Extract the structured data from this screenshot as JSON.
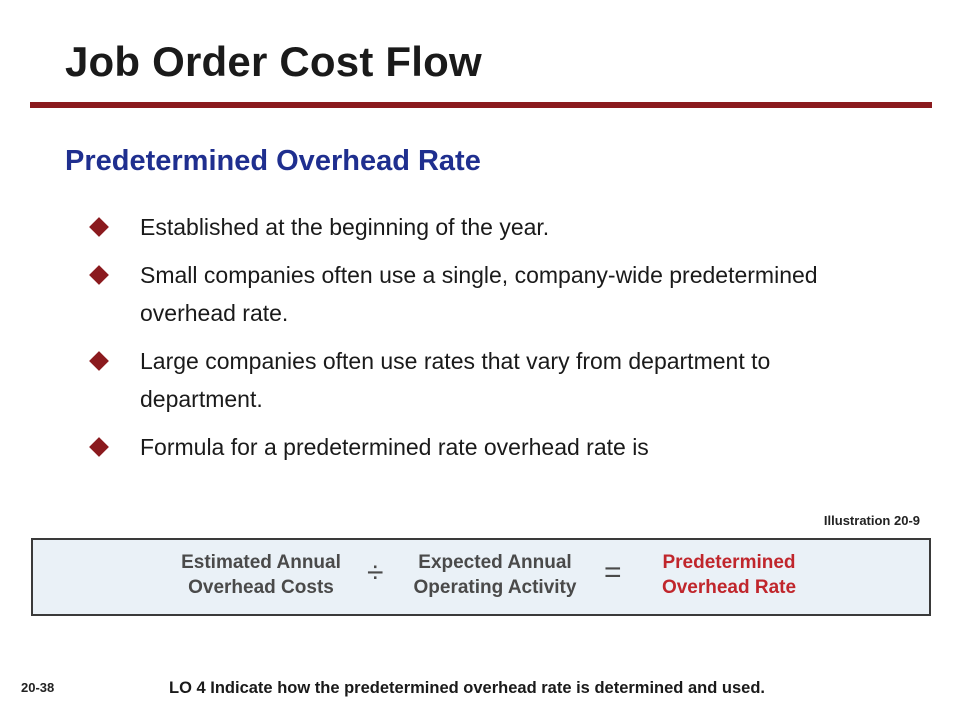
{
  "slide": {
    "title": "Job Order Cost Flow",
    "subtitle": "Predetermined Overhead Rate",
    "accent_color": "#8b1a1e",
    "subtitle_color": "#1f2f8f"
  },
  "bullets": [
    "Established at the beginning of the year.",
    "Small companies often use a single, company-wide predetermined overhead rate.",
    "Large companies often use rates that vary from department to department.",
    "Formula for a predetermined rate overhead rate is"
  ],
  "bullet_icon": "diamond-bullet-icon",
  "illustration": {
    "label": "Illustration 20-9",
    "term1_line1": "Estimated Annual",
    "term1_line2": "Overhead Costs",
    "operator1": "÷",
    "term2_line1": "Expected Annual",
    "term2_line2": "Operating Activity",
    "operator2": "=",
    "result_line1": "Predetermined",
    "result_line2": "Overhead Rate",
    "result_color": "#c0262c",
    "box_fill": "#eaf1f7"
  },
  "footer": {
    "slide_number": "20-38",
    "learning_objective": "LO 4  Indicate how the predetermined overhead rate is determined and used."
  }
}
